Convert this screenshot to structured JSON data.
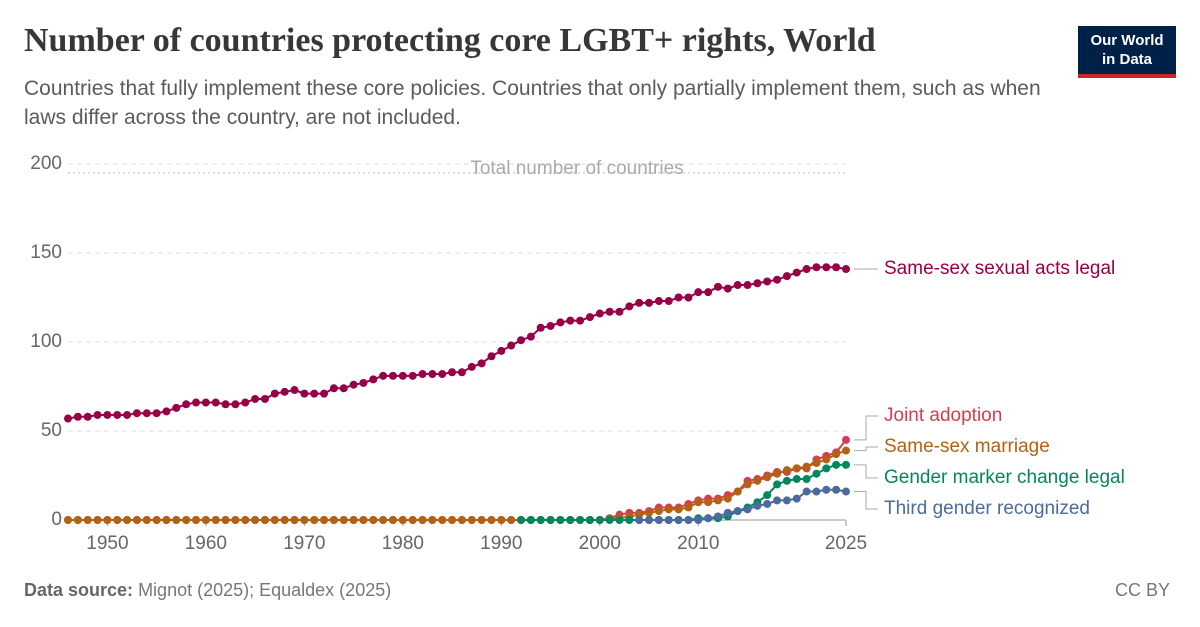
{
  "chart_data": {
    "type": "line",
    "title": "Number of countries protecting core LGBT+ rights, World",
    "subtitle": "Countries that fully implement these core policies. Countries that only partially implement them, such as when laws differ across the country, are not included.",
    "logo": [
      "Our World",
      "in Data"
    ],
    "source_label": "Data source:",
    "source": "Mignot (2025); Equaldex (2025)",
    "license": "CC BY",
    "reference": {
      "value": 195,
      "label": "Total number of countries"
    },
    "xlim": [
      1946,
      2025
    ],
    "xticks": [
      1950,
      1960,
      1970,
      1980,
      1990,
      2000,
      2010,
      2025
    ],
    "ylim": [
      0,
      200
    ],
    "yticks": [
      0,
      50,
      100,
      150,
      200
    ],
    "grid": true,
    "x": [
      1946,
      1947,
      1948,
      1949,
      1950,
      1951,
      1952,
      1953,
      1954,
      1955,
      1956,
      1957,
      1958,
      1959,
      1960,
      1961,
      1962,
      1963,
      1964,
      1965,
      1966,
      1967,
      1968,
      1969,
      1970,
      1971,
      1972,
      1973,
      1974,
      1975,
      1976,
      1977,
      1978,
      1979,
      1980,
      1981,
      1982,
      1983,
      1984,
      1985,
      1986,
      1987,
      1988,
      1989,
      1990,
      1991,
      1992,
      1993,
      1994,
      1995,
      1996,
      1997,
      1998,
      1999,
      2000,
      2001,
      2002,
      2003,
      2004,
      2005,
      2006,
      2007,
      2008,
      2009,
      2010,
      2011,
      2012,
      2013,
      2014,
      2015,
      2016,
      2017,
      2018,
      2019,
      2020,
      2021,
      2022,
      2023,
      2024,
      2025
    ],
    "series": [
      {
        "name": "Same-sex sexual acts legal",
        "color": "#970046",
        "values": [
          57,
          58,
          58,
          59,
          59,
          59,
          59,
          60,
          60,
          60,
          61,
          63,
          65,
          66,
          66,
          66,
          65,
          65,
          66,
          68,
          68,
          71,
          72,
          73,
          71,
          71,
          71,
          74,
          74,
          76,
          77,
          79,
          81,
          81,
          81,
          81,
          82,
          82,
          82,
          83,
          83,
          86,
          88,
          92,
          95,
          98,
          101,
          103,
          108,
          109,
          111,
          112,
          112,
          114,
          116,
          117,
          117,
          120,
          122,
          122,
          123,
          123,
          125,
          125,
          128,
          128,
          131,
          130,
          132,
          132,
          133,
          134,
          135,
          137,
          139,
          141,
          142,
          142,
          142,
          141
        ]
      },
      {
        "name": "Joint adoption",
        "color": "#d73c50",
        "values": [
          0,
          0,
          0,
          0,
          0,
          0,
          0,
          0,
          0,
          0,
          0,
          0,
          0,
          0,
          0,
          0,
          0,
          0,
          0,
          0,
          0,
          0,
          0,
          0,
          0,
          0,
          0,
          0,
          0,
          0,
          0,
          0,
          0,
          0,
          0,
          0,
          0,
          0,
          0,
          0,
          0,
          0,
          0,
          0,
          0,
          0,
          0,
          0,
          0,
          0,
          0,
          0,
          0,
          0,
          0,
          1,
          3,
          4,
          4,
          5,
          7,
          7,
          7,
          9,
          11,
          12,
          12,
          14,
          16,
          22,
          23,
          25,
          27,
          27,
          29,
          29,
          34,
          36,
          38,
          45
        ]
      },
      {
        "name": "Same-sex marriage",
        "color": "#b16214",
        "values": [
          0,
          0,
          0,
          0,
          0,
          0,
          0,
          0,
          0,
          0,
          0,
          0,
          0,
          0,
          0,
          0,
          0,
          0,
          0,
          0,
          0,
          0,
          0,
          0,
          0,
          0,
          0,
          0,
          0,
          0,
          0,
          0,
          0,
          0,
          0,
          0,
          0,
          0,
          0,
          0,
          0,
          0,
          0,
          0,
          0,
          0,
          0,
          0,
          0,
          0,
          0,
          0,
          0,
          0,
          0,
          1,
          1,
          2,
          3,
          4,
          5,
          6,
          6,
          7,
          10,
          10,
          11,
          12,
          16,
          20,
          22,
          24,
          26,
          28,
          29,
          30,
          32,
          34,
          37,
          39
        ]
      },
      {
        "name": "Gender marker change legal",
        "color": "#00875e",
        "values": [
          null,
          null,
          null,
          null,
          null,
          null,
          null,
          null,
          null,
          null,
          null,
          null,
          null,
          null,
          null,
          null,
          null,
          null,
          null,
          null,
          null,
          null,
          null,
          null,
          null,
          null,
          null,
          null,
          null,
          null,
          null,
          null,
          null,
          null,
          null,
          null,
          null,
          null,
          null,
          null,
          null,
          null,
          null,
          null,
          null,
          null,
          0,
          0,
          0,
          0,
          0,
          0,
          0,
          0,
          0,
          0,
          0,
          0,
          0,
          0,
          0,
          0,
          0,
          0,
          1,
          1,
          1,
          2,
          5,
          7,
          10,
          14,
          20,
          22,
          23,
          23,
          26,
          29,
          31,
          31
        ]
      },
      {
        "name": "Third gender recognized",
        "color": "#4c6a9c",
        "values": [
          null,
          null,
          null,
          null,
          null,
          null,
          null,
          null,
          null,
          null,
          null,
          null,
          null,
          null,
          null,
          null,
          null,
          null,
          null,
          null,
          null,
          null,
          null,
          null,
          null,
          null,
          null,
          null,
          null,
          null,
          null,
          null,
          null,
          null,
          null,
          null,
          null,
          null,
          null,
          null,
          null,
          null,
          null,
          null,
          null,
          null,
          null,
          null,
          null,
          null,
          null,
          null,
          null,
          null,
          null,
          null,
          null,
          null,
          0,
          0,
          0,
          0,
          0,
          0,
          0,
          1,
          2,
          4,
          5,
          6,
          8,
          9,
          11,
          11,
          12,
          16,
          16,
          17,
          17,
          16
        ]
      }
    ]
  }
}
